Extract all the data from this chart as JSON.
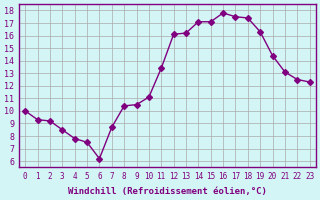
{
  "x": [
    0,
    1,
    2,
    3,
    4,
    5,
    6,
    7,
    8,
    9,
    10,
    11,
    12,
    13,
    14,
    15,
    16,
    17,
    18,
    19,
    20,
    21,
    22,
    23
  ],
  "y": [
    10.0,
    9.3,
    9.2,
    8.5,
    7.8,
    7.5,
    6.2,
    8.7,
    10.4,
    10.5,
    11.1,
    13.4,
    16.1,
    16.2,
    17.1,
    17.1,
    17.8,
    17.5,
    17.4,
    16.3,
    14.4,
    13.1,
    12.5,
    12.3
  ],
  "line_color": "#800080",
  "marker": "D",
  "marker_size": 3,
  "bg_color": "#d4f5f5",
  "grid_color": "#aaaaaa",
  "xlabel": "Windchill (Refroidissement éolien,°C)",
  "ylabel_ticks": [
    6,
    7,
    8,
    9,
    10,
    11,
    12,
    13,
    14,
    15,
    16,
    17,
    18
  ],
  "xticks": [
    0,
    1,
    2,
    3,
    4,
    5,
    6,
    7,
    8,
    9,
    10,
    11,
    12,
    13,
    14,
    15,
    16,
    17,
    18,
    19,
    20,
    21,
    22,
    23
  ],
  "ylim": [
    5.5,
    18.5
  ],
  "xlim": [
    -0.5,
    23.5
  ]
}
